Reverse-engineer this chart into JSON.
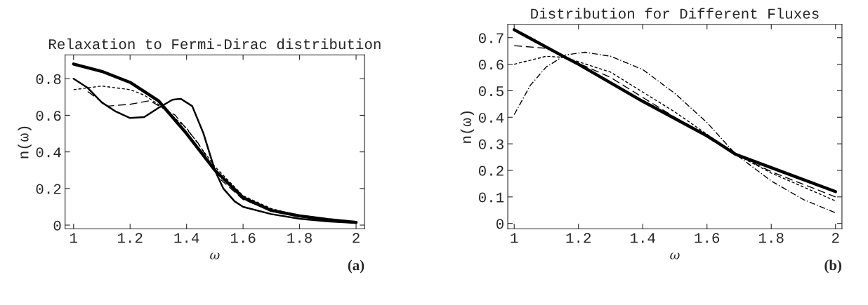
{
  "chart_data": [
    {
      "type": "line",
      "title": "Relaxation to Fermi-Dirac distribution",
      "xlabel": "ω",
      "ylabel": "n(ω)",
      "annotations": [
        "(a)"
      ],
      "xlim": [
        0.97,
        2.03
      ],
      "ylim": [
        -0.02,
        0.93
      ],
      "xticks": [
        1,
        1.2,
        1.4,
        1.6,
        1.8,
        2
      ],
      "yticks": [
        0,
        0.2,
        0.4,
        0.6,
        0.8
      ],
      "grid": false,
      "legend": false,
      "series": [
        {
          "color": "#000000",
          "line_style": "solid",
          "x": [
            1.0,
            1.1,
            1.2,
            1.3,
            1.4,
            1.5,
            1.6,
            1.7,
            1.8,
            1.9,
            2.0
          ],
          "values": [
            0.88,
            0.84,
            0.78,
            0.68,
            0.5,
            0.3,
            0.15,
            0.08,
            0.05,
            0.03,
            0.015
          ]
        },
        {
          "color": "#000000",
          "line_style": "solid",
          "x": [
            1.0,
            1.05,
            1.1,
            1.15,
            1.2,
            1.25,
            1.3,
            1.35,
            1.38,
            1.42,
            1.46,
            1.5,
            1.53,
            1.57,
            1.6,
            1.7,
            1.8,
            1.9,
            2.0
          ],
          "values": [
            0.8,
            0.75,
            0.67,
            0.62,
            0.585,
            0.59,
            0.64,
            0.685,
            0.69,
            0.65,
            0.5,
            0.3,
            0.2,
            0.13,
            0.1,
            0.06,
            0.035,
            0.02,
            0.012
          ]
        },
        {
          "color": "#000000",
          "line_style": "dashed",
          "x": [
            1.05,
            1.12,
            1.2,
            1.27,
            1.36,
            1.44,
            1.52,
            1.6,
            1.7,
            1.8,
            1.9,
            2.0
          ],
          "values": [
            0.73,
            0.65,
            0.66,
            0.68,
            0.6,
            0.45,
            0.25,
            0.14,
            0.08,
            0.05,
            0.025,
            0.015
          ]
        },
        {
          "color": "#000000",
          "line_style": "dotted",
          "x": [
            1.0,
            1.1,
            1.2,
            1.25,
            1.3,
            1.4,
            1.5,
            1.6,
            1.7,
            1.8,
            1.9,
            2.0
          ],
          "values": [
            0.74,
            0.76,
            0.74,
            0.71,
            0.66,
            0.53,
            0.32,
            0.16,
            0.09,
            0.05,
            0.03,
            0.015
          ]
        }
      ]
    },
    {
      "type": "line",
      "title": "Distribution for Different Fluxes",
      "xlabel": "ω",
      "ylabel": "n(ω)",
      "annotations": [
        "(b)"
      ],
      "xlim": [
        0.98,
        2.02
      ],
      "ylim": [
        -0.02,
        0.75
      ],
      "xticks": [
        1,
        1.2,
        1.4,
        1.6,
        1.8,
        2
      ],
      "yticks": [
        0,
        0.1,
        0.2,
        0.3,
        0.4,
        0.5,
        0.6,
        0.7
      ],
      "grid": false,
      "legend": false,
      "series": [
        {
          "color": "#000000",
          "line_style": "solid",
          "x": [
            1.0,
            1.16,
            1.2,
            1.4,
            1.6,
            1.69,
            1.8,
            2.0
          ],
          "values": [
            0.73,
            0.625,
            0.6,
            0.46,
            0.33,
            0.26,
            0.21,
            0.12
          ]
        },
        {
          "color": "#000000",
          "line_style": "dashed",
          "x": [
            1.0,
            1.1,
            1.16,
            1.3,
            1.5,
            1.69,
            1.8,
            2.0
          ],
          "values": [
            0.67,
            0.66,
            0.625,
            0.55,
            0.4,
            0.26,
            0.195,
            0.1
          ]
        },
        {
          "color": "#000000",
          "line_style": "dotted",
          "x": [
            1.0,
            1.1,
            1.16,
            1.3,
            1.5,
            1.69,
            1.8,
            2.0
          ],
          "values": [
            0.6,
            0.63,
            0.625,
            0.57,
            0.42,
            0.26,
            0.19,
            0.085
          ]
        },
        {
          "color": "#000000",
          "line_style": "dashdot",
          "x": [
            1.0,
            1.05,
            1.1,
            1.16,
            1.22,
            1.3,
            1.4,
            1.5,
            1.6,
            1.69,
            1.8,
            1.9,
            2.0
          ],
          "values": [
            0.41,
            0.52,
            0.59,
            0.635,
            0.645,
            0.63,
            0.58,
            0.49,
            0.38,
            0.26,
            0.16,
            0.09,
            0.04
          ]
        }
      ]
    }
  ]
}
